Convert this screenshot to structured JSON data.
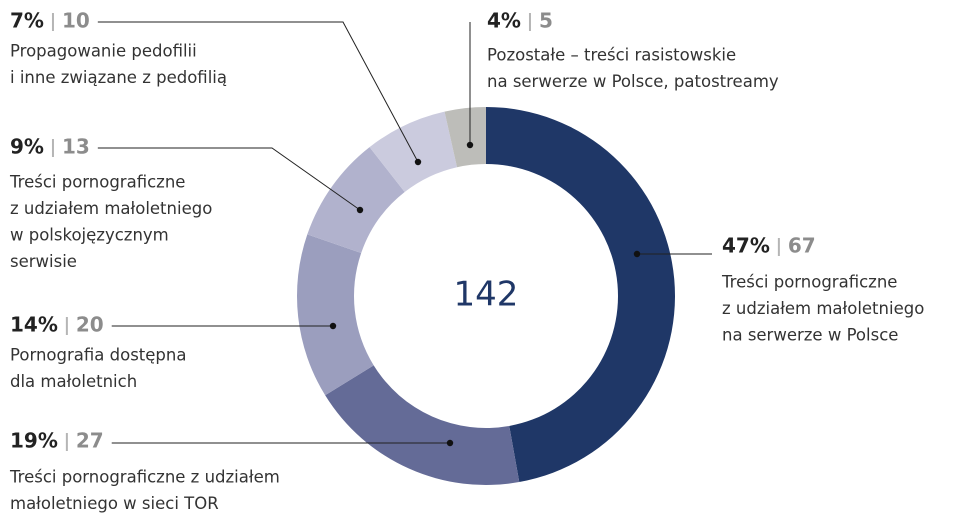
{
  "chart_data": {
    "type": "donut",
    "total": 142,
    "categories": [
      [
        "Treści pornograficzne",
        "z udziałem małoletniego",
        "na serwerze w Polsce"
      ],
      [
        "Treści pornograficzne z udziałem",
        "małoletniego w sieci TOR"
      ],
      [
        "Pornografia dostępna",
        "dla małoletnich"
      ],
      [
        "Treści pornograficzne",
        "z udziałem małoletniego",
        "w polskojęzycznym",
        "serwisie"
      ],
      [
        "Propagowanie pedofilii",
        "i inne związane z pedofilią"
      ],
      [
        "Pozostałe – treści rasistowskie",
        "na serwerze w Polsce, patostreamy"
      ]
    ],
    "values": [
      67,
      27,
      20,
      13,
      10,
      5
    ],
    "percentages": [
      47,
      19,
      14,
      9,
      7,
      4
    ],
    "value_labels": [
      "47%",
      "19%",
      "14%",
      "9%",
      "7%",
      "4%"
    ],
    "colors": [
      "#1f3767",
      "#646b97",
      "#9b9ebe",
      "#b1b2cd",
      "#cbcbde",
      "#bdbdb9"
    ]
  }
}
